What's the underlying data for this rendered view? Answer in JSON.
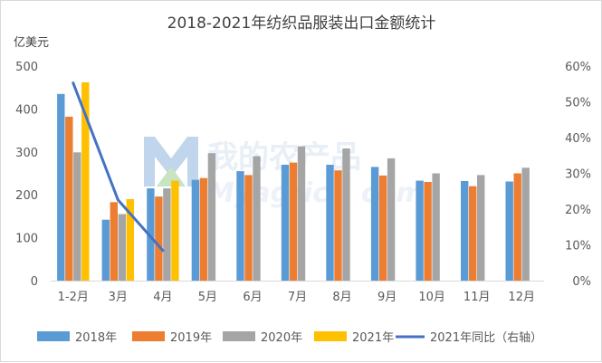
{
  "chart_data": {
    "type": "bar",
    "title": "2018-2021年纺织品服装出口金额统计",
    "ylabel": "亿美元",
    "ylim": [
      0,
      500
    ],
    "y_ticks": [
      "0",
      "100",
      "200",
      "300",
      "400",
      "500"
    ],
    "y2lim": [
      0,
      60
    ],
    "y2_ticks": [
      "0%",
      "10%",
      "20%",
      "30%",
      "40%",
      "50%",
      "60%"
    ],
    "categories": [
      "1-2月",
      "3月",
      "4月",
      "5月",
      "6月",
      "7月",
      "8月",
      "9月",
      "10月",
      "11月",
      "12月"
    ],
    "series": [
      {
        "name": "2018年",
        "type": "bar",
        "color": "#5b9bd5",
        "values": [
          435,
          142,
          215,
          235,
          255,
          270,
          270,
          265,
          233,
          232,
          231
        ]
      },
      {
        "name": "2019年",
        "type": "bar",
        "color": "#ed7d31",
        "values": [
          382,
          183,
          196,
          239,
          246,
          275,
          257,
          245,
          230,
          220,
          250
        ]
      },
      {
        "name": "2020年",
        "type": "bar",
        "color": "#a5a5a5",
        "values": [
          299,
          155,
          215,
          297,
          290,
          313,
          308,
          285,
          250,
          246,
          263
        ]
      },
      {
        "name": "2021年",
        "type": "bar",
        "color": "#ffc000",
        "values": [
          462,
          190,
          233,
          null,
          null,
          null,
          null,
          null,
          null,
          null,
          null
        ]
      },
      {
        "name": "2021年同比（右轴）",
        "type": "line",
        "axis": "right",
        "color": "#4472c4",
        "values": [
          55.3,
          22.6,
          8.4,
          null,
          null,
          null,
          null,
          null,
          null,
          null,
          null
        ]
      }
    ],
    "legend": "bottom",
    "grid": false
  },
  "watermark": {
    "text": "我的农产品",
    "sub": "Myagric",
    "sub2": "com",
    "color": "#4a7fc1"
  }
}
